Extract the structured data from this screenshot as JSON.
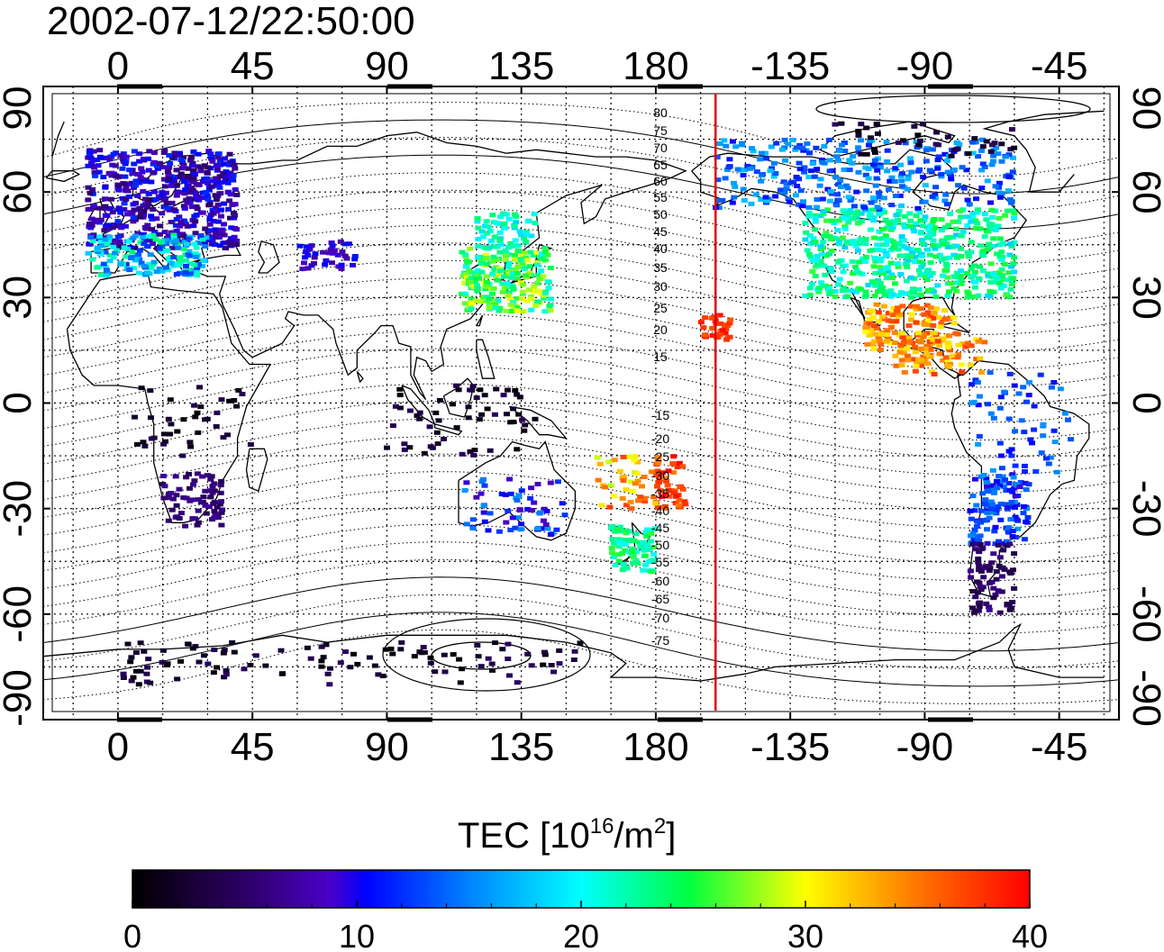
{
  "timestamp": "2002-07-12/22:50:00",
  "map": {
    "lon_ticks": [
      "0",
      "45",
      "90",
      "135",
      "180",
      "-135",
      "-90",
      "-45"
    ],
    "lat_ticks": [
      "90",
      "60",
      "30",
      "0",
      "-30",
      "-60",
      "-90"
    ],
    "lon_range": [
      -25,
      335
    ],
    "lat_range": [
      -90,
      90
    ],
    "gridlines": "dotted every 15 degrees",
    "geomag_latitude_labels": [
      "80",
      "75",
      "70",
      "65",
      "60",
      "55",
      "50",
      "45",
      "40",
      "35",
      "30",
      "25",
      "20",
      "15",
      "-15",
      "-20",
      "-25",
      "-30",
      "-35",
      "-40",
      "-45",
      "-50",
      "-55",
      "-60",
      "-65",
      "-70",
      "-75"
    ],
    "terminator_longitude": -160,
    "terminator_color": "#e00000"
  },
  "colorbar": {
    "title_main": "TEC  [10",
    "title_exp1": "16",
    "title_mid": "/m",
    "title_exp2": "2",
    "title_end": "]",
    "tick_labels": [
      "0",
      "10",
      "20",
      "30",
      "40"
    ],
    "range": [
      0,
      40
    ],
    "colormap": "black-purple-blue-cyan-green-yellow-red"
  }
}
